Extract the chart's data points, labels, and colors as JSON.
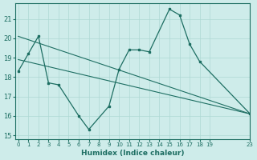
{
  "bg_color": "#ceecea",
  "grid_color": "#aed8d4",
  "line_color": "#1d6e62",
  "xlabel": "Humidex (Indice chaleur)",
  "xlim": [
    -0.5,
    23.5
  ],
  "ylim": [
    14.8,
    21.8
  ],
  "yticks": [
    15,
    16,
    17,
    18,
    19,
    20,
    21
  ],
  "xtick_positions": [
    0,
    1,
    2,
    3,
    4,
    5,
    6,
    7,
    8,
    9,
    10,
    11,
    12,
    13,
    14,
    15,
    16,
    17,
    18,
    19,
    23
  ],
  "xtick_labels": [
    "0",
    "1",
    "2",
    "3",
    "4",
    "5",
    "6",
    "7",
    "8",
    "9",
    "10",
    "11",
    "12",
    "13",
    "14",
    "15",
    "16",
    "17",
    "18",
    "19",
    "23"
  ],
  "line1_x": [
    0,
    1,
    2,
    3,
    4,
    6,
    7,
    9,
    10,
    11,
    12,
    13,
    15,
    16,
    17,
    18,
    23
  ],
  "line1_y": [
    18.3,
    19.2,
    20.1,
    17.7,
    17.6,
    16.0,
    15.3,
    16.5,
    18.4,
    19.4,
    19.4,
    19.3,
    21.5,
    21.2,
    19.7,
    18.8,
    16.1
  ],
  "line2_x": [
    0,
    23
  ],
  "line2_y": [
    20.1,
    16.1
  ],
  "line3_x": [
    0,
    23
  ],
  "line3_y": [
    18.9,
    16.1
  ]
}
